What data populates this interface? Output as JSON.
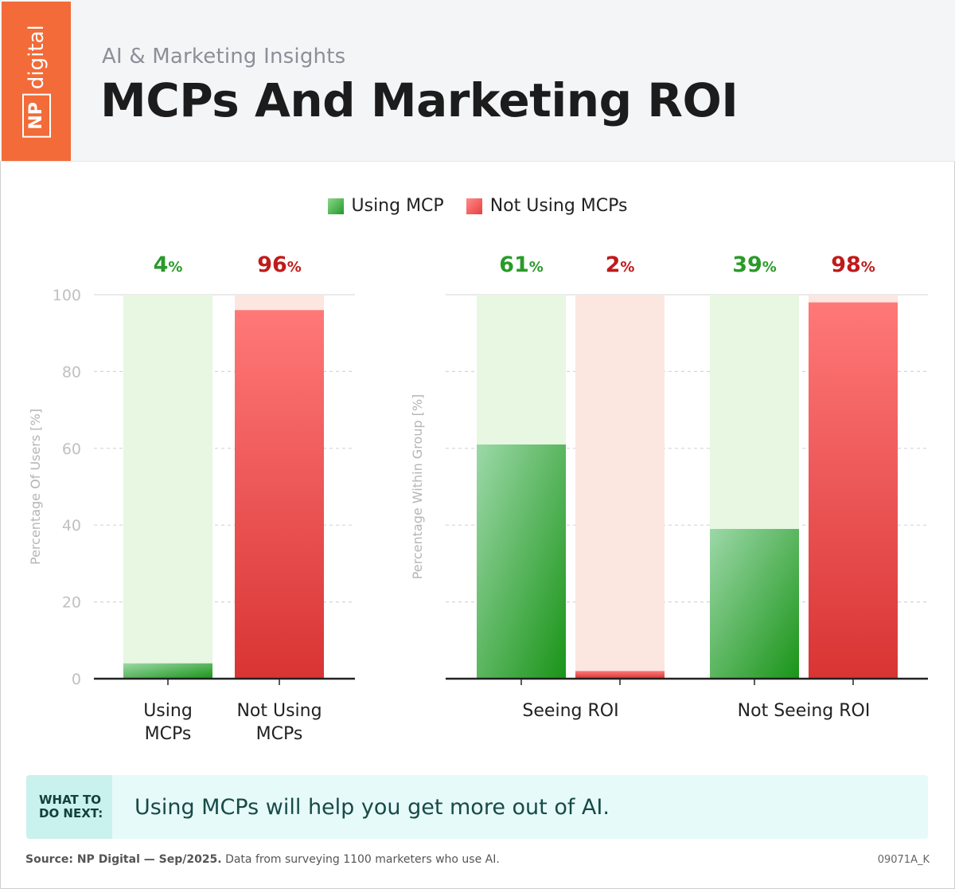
{
  "header": {
    "logo_np": "NP",
    "logo_digital": "digital",
    "kicker": "AI & Marketing Insights",
    "title": "MCPs And Marketing ROI"
  },
  "legend": [
    {
      "label": "Using MCP",
      "color": "#1f9a2a"
    },
    {
      "label": "Not Using MCPs",
      "color": "#e8403f"
    }
  ],
  "colors": {
    "green": "#1f9a2a",
    "green_light": "#e7f7e2",
    "green_label": "#2a9a2a",
    "red": "#e8403f",
    "red_light": "#fbe6e0",
    "red_label": "#c01a1a",
    "axis_text": "#c0c0c0"
  },
  "chart_data": [
    {
      "type": "bar",
      "ylabel": "Percentage Of Users [%]",
      "ylim": [
        0,
        100
      ],
      "yticks": [
        0,
        20,
        40,
        60,
        80,
        100
      ],
      "grid": true,
      "categories": [
        "Using\nMCPs",
        "Not Using\nMCPs"
      ],
      "bars": [
        {
          "category": "Using\nMCPs",
          "series": "Using MCP",
          "value": 4,
          "label": "4"
        },
        {
          "category": "Not Using\nMCPs",
          "series": "Not Using MCPs",
          "value": 96,
          "label": "96"
        }
      ]
    },
    {
      "type": "bar",
      "ylabel": "Percentage Within Group [%]",
      "ylim": [
        0,
        100
      ],
      "grid": true,
      "categories": [
        "Seeing ROI",
        "Not Seeing ROI"
      ],
      "series": [
        {
          "name": "Using MCP",
          "values": [
            61,
            39
          ],
          "labels": [
            "61",
            "39"
          ]
        },
        {
          "name": "Not Using MCPs",
          "values": [
            2,
            98
          ],
          "labels": [
            "2",
            "98"
          ]
        }
      ]
    }
  ],
  "next_step": {
    "tag_line1": "WHAT TO",
    "tag_line2": "DO NEXT:",
    "text": "Using MCPs will help you get more out of AI."
  },
  "footer": {
    "source_bold": "Source: NP Digital — Sep/2025.",
    "source_rest": " Data from surveying 1100 marketers who use AI.",
    "code": "09071A_K"
  }
}
